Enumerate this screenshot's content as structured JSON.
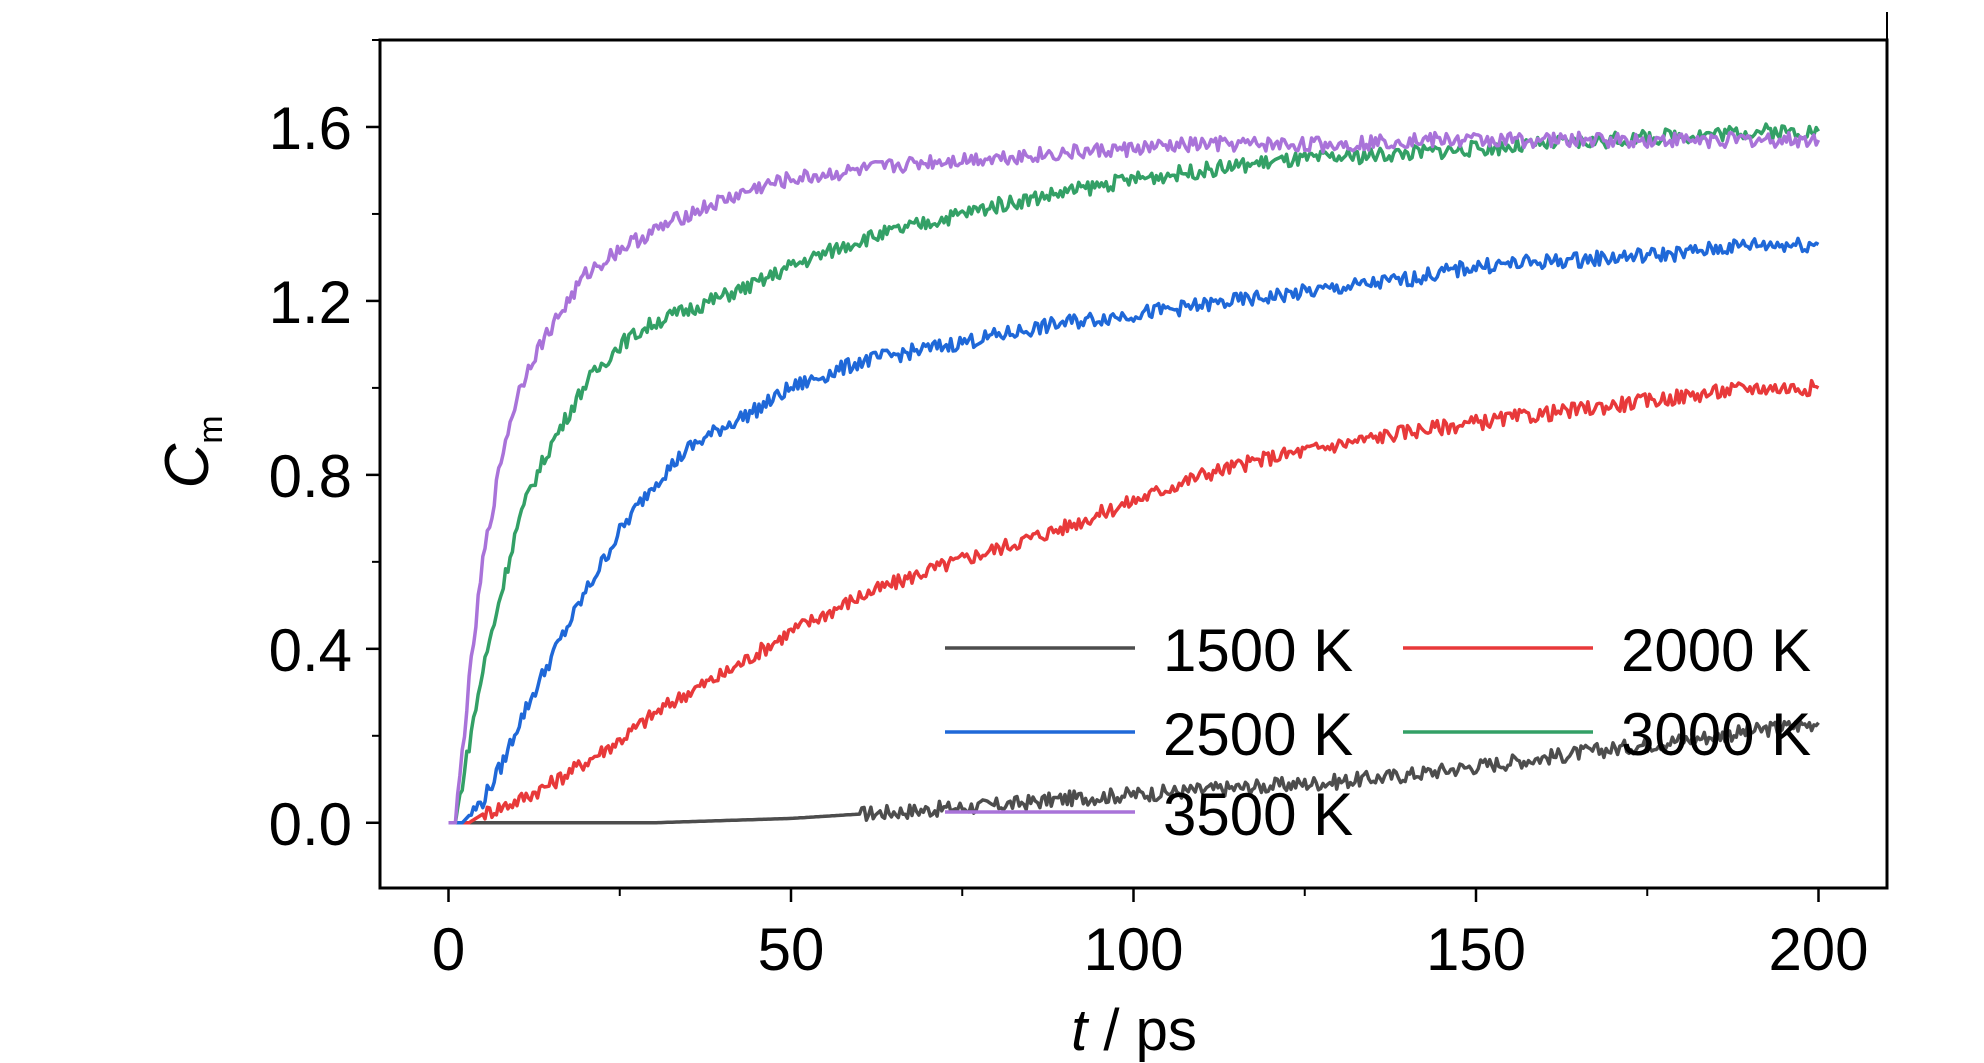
{
  "chart_data": {
    "type": "line",
    "xlabel": {
      "italic": "t",
      "rest": " / ps"
    },
    "ylabel": {
      "main": "C",
      "sub": "m"
    },
    "xlim": [
      -10,
      210
    ],
    "ylim": [
      -0.15,
      1.8
    ],
    "x_ticks": [
      0,
      50,
      100,
      150,
      200
    ],
    "x_tick_labels": [
      "0",
      "50",
      "100",
      "150",
      "200"
    ],
    "y_ticks": [
      0.0,
      0.4,
      0.8,
      1.2,
      1.6
    ],
    "y_tick_labels": [
      "0.0",
      "0.4",
      "0.8",
      "1.2",
      "1.6"
    ],
    "grid": false,
    "legend_position": "bottom-right",
    "series": [
      {
        "name": "1500 K",
        "color": "#4d4d4d",
        "x": [
          0,
          30,
          40,
          50,
          60,
          70,
          80,
          90,
          100,
          110,
          120,
          130,
          140,
          150,
          160,
          170,
          180,
          190,
          200
        ],
        "y": [
          0,
          0,
          0.005,
          0.01,
          0.02,
          0.03,
          0.04,
          0.055,
          0.065,
          0.075,
          0.085,
          0.095,
          0.11,
          0.13,
          0.15,
          0.17,
          0.19,
          0.21,
          0.23
        ]
      },
      {
        "name": "2000 K",
        "color": "#e8393a",
        "x": [
          0,
          3,
          5,
          10,
          15,
          20,
          25,
          30,
          35,
          40,
          45,
          50,
          55,
          60,
          70,
          80,
          90,
          100,
          110,
          120,
          130,
          140,
          150,
          160,
          170,
          180,
          190,
          200
        ],
        "y": [
          0,
          0,
          0.02,
          0.05,
          0.09,
          0.14,
          0.19,
          0.25,
          0.3,
          0.34,
          0.39,
          0.44,
          0.48,
          0.52,
          0.58,
          0.63,
          0.68,
          0.74,
          0.8,
          0.84,
          0.87,
          0.9,
          0.92,
          0.94,
          0.96,
          0.98,
          1.0,
          1.0
        ]
      },
      {
        "name": "2500 K",
        "color": "#1f68d8",
        "x": [
          0,
          2,
          5,
          8,
          10,
          15,
          20,
          25,
          30,
          35,
          40,
          45,
          50,
          55,
          60,
          70,
          80,
          90,
          100,
          110,
          120,
          130,
          140,
          150,
          160,
          170,
          180,
          190,
          200
        ],
        "y": [
          0,
          0,
          0.05,
          0.14,
          0.22,
          0.38,
          0.53,
          0.67,
          0.78,
          0.86,
          0.91,
          0.95,
          1.0,
          1.03,
          1.06,
          1.09,
          1.12,
          1.15,
          1.17,
          1.19,
          1.21,
          1.23,
          1.25,
          1.28,
          1.29,
          1.3,
          1.31,
          1.33,
          1.33
        ]
      },
      {
        "name": "3000 K",
        "color": "#33a066",
        "x": [
          0,
          1,
          3,
          5,
          8,
          10,
          12,
          15,
          20,
          25,
          30,
          35,
          40,
          45,
          50,
          55,
          60,
          70,
          80,
          90,
          100,
          110,
          120,
          130,
          140,
          150,
          160,
          170,
          180,
          190,
          200
        ],
        "y": [
          0,
          0,
          0.18,
          0.35,
          0.55,
          0.68,
          0.77,
          0.87,
          1.01,
          1.1,
          1.15,
          1.18,
          1.21,
          1.24,
          1.28,
          1.31,
          1.34,
          1.38,
          1.42,
          1.45,
          1.48,
          1.5,
          1.52,
          1.53,
          1.54,
          1.55,
          1.56,
          1.57,
          1.58,
          1.59,
          1.59
        ]
      },
      {
        "name": "3500 K",
        "color": "#a973d9",
        "x": [
          0,
          1,
          3,
          5,
          8,
          10,
          12,
          15,
          20,
          25,
          30,
          35,
          40,
          45,
          50,
          55,
          60,
          70,
          80,
          90,
          100,
          110,
          120,
          130,
          140,
          150,
          160,
          170,
          180,
          190,
          200
        ],
        "y": [
          0,
          0,
          0.32,
          0.6,
          0.86,
          0.98,
          1.06,
          1.14,
          1.26,
          1.32,
          1.36,
          1.4,
          1.43,
          1.46,
          1.48,
          1.49,
          1.5,
          1.52,
          1.53,
          1.54,
          1.55,
          1.56,
          1.56,
          1.56,
          1.57,
          1.57,
          1.57,
          1.57,
          1.57,
          1.57,
          1.57
        ]
      }
    ]
  }
}
